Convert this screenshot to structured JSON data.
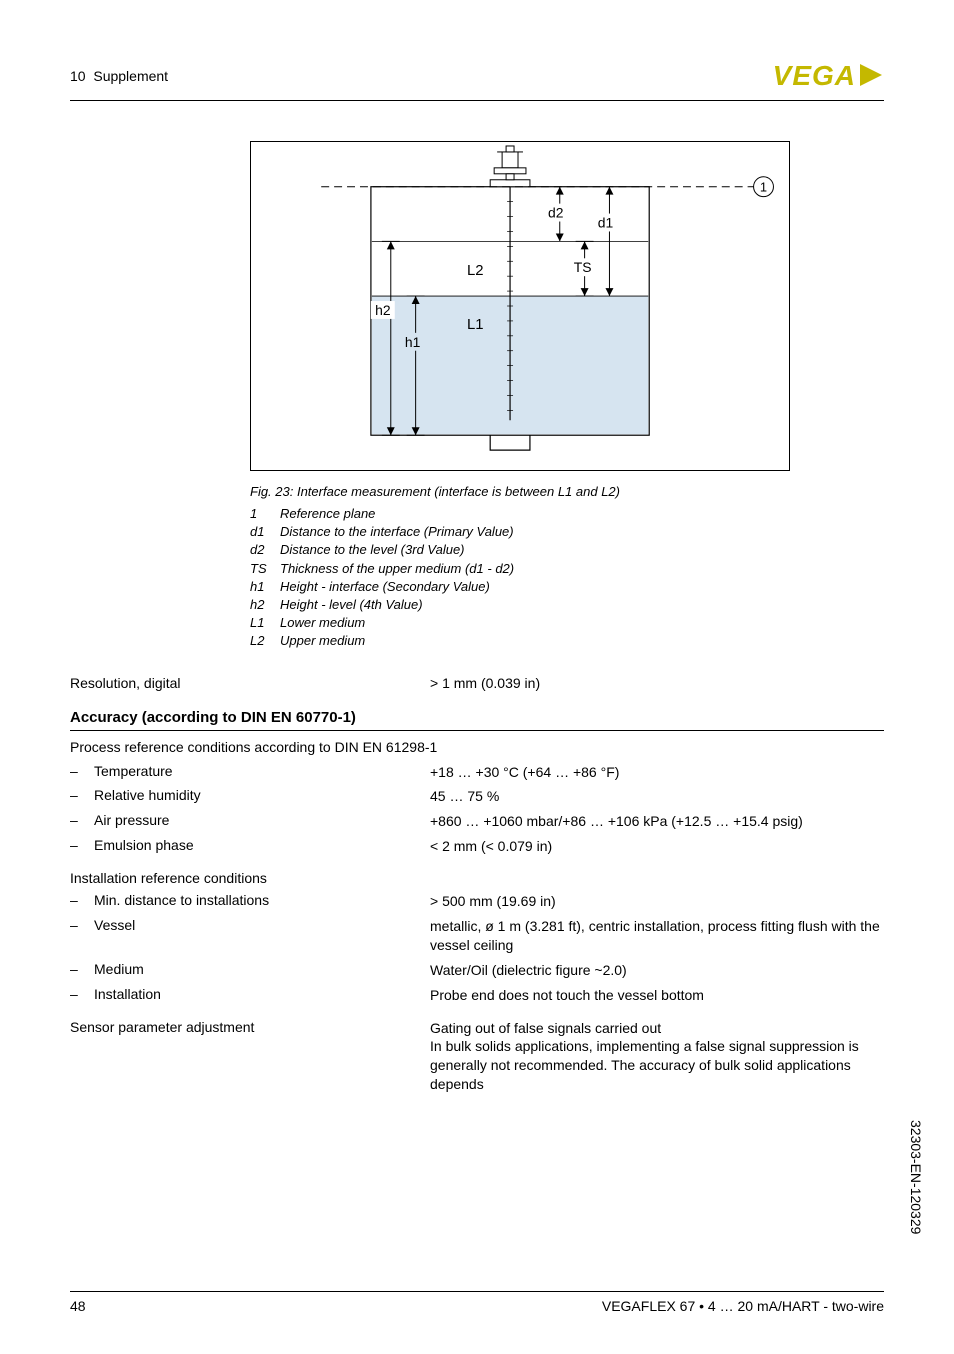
{
  "header": {
    "chapter_num": "10",
    "chapter_title": "Supplement",
    "logo_text": "VEGA",
    "logo_color": "#c4b800"
  },
  "figure": {
    "border_color": "#000000",
    "bg_color": "#ffffff",
    "liquid_color": "#d6e4f0",
    "labels": {
      "d1": "d1",
      "d2": "d2",
      "L1": "L1",
      "L2": "L2",
      "h1": "h1",
      "h2": "h2",
      "TS": "TS",
      "callout1": "1"
    },
    "caption": "Fig. 23: Interface measurement (interface is between L1 and L2)",
    "legend": [
      {
        "key": "1",
        "text": "Reference plane"
      },
      {
        "key": "d1",
        "text": "Distance to the interface (Primary Value)"
      },
      {
        "key": "d2",
        "text": "Distance to the level (3rd Value)"
      },
      {
        "key": "TS",
        "text": "Thickness of the upper medium (d1 - d2)"
      },
      {
        "key": "h1",
        "text": "Height - interface (Secondary Value)"
      },
      {
        "key": "h2",
        "text": "Height - level (4th Value)"
      },
      {
        "key": "L1",
        "text": "Lower medium"
      },
      {
        "key": "L2",
        "text": "Upper medium"
      }
    ]
  },
  "resolution": {
    "label": "Resolution, digital",
    "value": "> 1 mm (0.039 in)"
  },
  "accuracy": {
    "title": "Accuracy (according to DIN EN 60770-1)",
    "process_ref": "Process reference conditions according to DIN EN 61298-1",
    "process_items": [
      {
        "label": "Temperature",
        "value": "+18 … +30 °C (+64 … +86 °F)"
      },
      {
        "label": "Relative humidity",
        "value": "45 … 75 %"
      },
      {
        "label": "Air pressure",
        "value": "+860 … +1060 mbar/+86 … +106 kPa (+12.5 … +15.4 psig)"
      },
      {
        "label": "Emulsion phase",
        "value": "< 2 mm (< 0.079 in)"
      }
    ],
    "install_ref": "Installation reference conditions",
    "install_items": [
      {
        "label": "Min. distance to installations",
        "value": "> 500 mm (19.69 in)"
      },
      {
        "label": "Vessel",
        "value": "metallic, ø 1 m (3.281 ft), centric installation, process fitting flush with the vessel ceiling"
      },
      {
        "label": "Medium",
        "value": "Water/Oil (dielectric figure ~2.0)"
      },
      {
        "label": "Installation",
        "value": "Probe end does not touch the vessel bottom"
      }
    ],
    "sensor_param": {
      "label": "Sensor parameter adjustment",
      "value": "Gating out of false signals carried out\nIn bulk solids applications, implementing a false signal suppression is generally not recommended. The accuracy of bulk solid applications depends"
    }
  },
  "footer": {
    "page": "48",
    "doc": "VEGAFLEX 67 • 4 … 20 mA/HART - two-wire"
  },
  "side_code": "32303-EN-120329"
}
